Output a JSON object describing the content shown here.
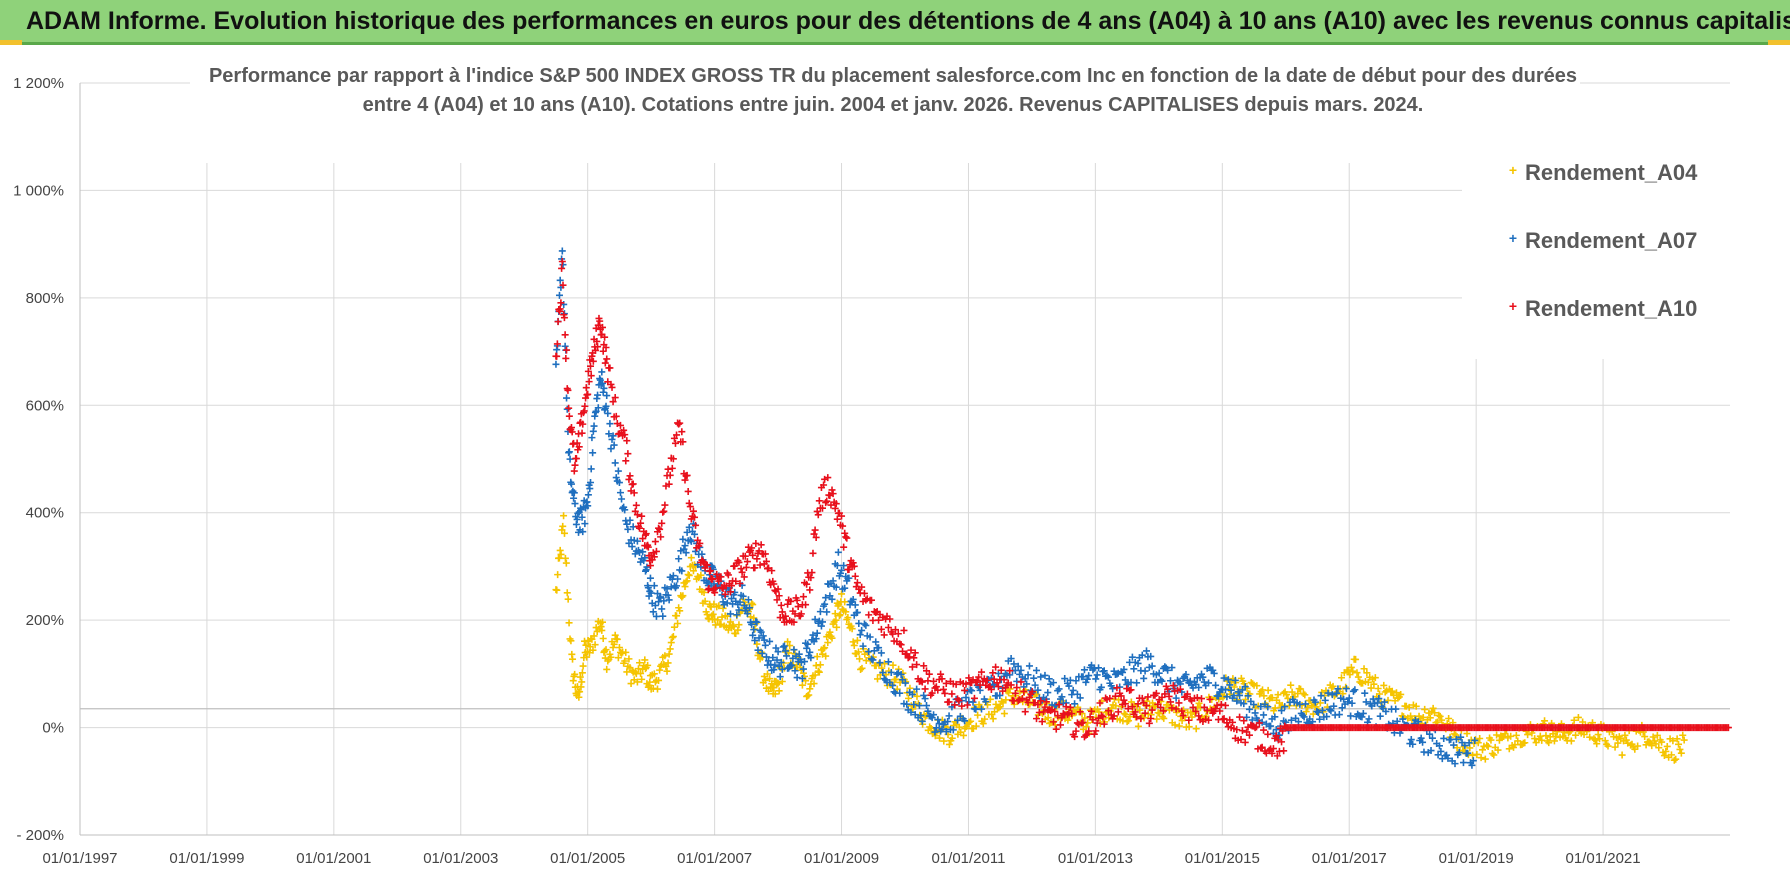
{
  "banner": {
    "title": "ADAM Informe. Evolution historique des performances en euros pour des détentions de 4 ans (A04) à 10 ans (A10) avec les revenus connus capitalisés"
  },
  "chart_data": {
    "type": "scatter",
    "title_line1": "Performance par rapport à l'indice S&P 500 INDEX GROSS TR  du placement salesforce.com Inc en fonction de la date de début pour des durées",
    "title_line2": "entre 4 (A04) et 10 ans (A10). Cotations entre juin. 2004 et janv. 2026. Revenus CAPITALISES depuis mars. 2024.",
    "xlabel": "",
    "ylabel": "",
    "x_tick_labels": [
      "01/01/1997",
      "01/01/1999",
      "01/01/2001",
      "01/01/2003",
      "01/01/2005",
      "01/01/2007",
      "01/01/2009",
      "01/01/2011",
      "01/01/2013",
      "01/01/2015",
      "01/01/2017",
      "01/01/2019",
      "01/01/2021"
    ],
    "x_tick_years": [
      1997,
      1999,
      2001,
      2003,
      2005,
      2007,
      2009,
      2011,
      2013,
      2015,
      2017,
      2019,
      2021
    ],
    "xlim": [
      1997.0,
      2023.0
    ],
    "y_tick_labels": [
      "- 200%",
      "0%",
      "200%",
      "400%",
      "600%",
      "800%",
      "1 000%",
      "1 200%"
    ],
    "y_tick_values": [
      -200,
      0,
      200,
      400,
      600,
      800,
      1000,
      1200
    ],
    "ylim": [
      -200,
      1200
    ],
    "grid": true,
    "legend_position": "top-right",
    "series": [
      {
        "name": "Rendement_A04",
        "color": "#f5c400",
        "x": [
          2004.5,
          2004.62,
          2004.75,
          2004.85,
          2004.95,
          2005.05,
          2005.2,
          2005.3,
          2005.45,
          2005.6,
          2005.75,
          2005.9,
          2006.0,
          2006.15,
          2006.3,
          2006.45,
          2006.6,
          2006.75,
          2006.9,
          2007.0,
          2007.15,
          2007.3,
          2007.45,
          2007.6,
          2007.75,
          2007.9,
          2008.0,
          2008.15,
          2008.3,
          2008.45,
          2008.6,
          2008.75,
          2008.9,
          2009.0,
          2009.15,
          2009.3,
          2009.5,
          2009.7,
          2009.9,
          2010.1,
          2010.3,
          2010.5,
          2010.7,
          2010.9,
          2011.1,
          2011.3,
          2011.5,
          2011.7,
          2011.9,
          2012.1,
          2012.3,
          2012.5,
          2012.7,
          2012.9,
          2013.1,
          2013.3,
          2013.5,
          2013.7,
          2013.9,
          2014.1,
          2014.3,
          2014.5,
          2014.7,
          2014.9,
          2015.1,
          2015.3,
          2015.5,
          2015.7,
          2015.9,
          2016.1,
          2016.3,
          2016.5,
          2016.7,
          2016.9,
          2017.1,
          2017.3,
          2017.5,
          2017.7,
          2017.9,
          2018.1,
          2018.3,
          2018.5,
          2018.7,
          2018.9,
          2019.1,
          2019.3,
          2019.5,
          2019.7,
          2019.9,
          2020.1,
          2020.3,
          2020.5,
          2020.7,
          2020.9,
          2021.1,
          2021.3,
          2021.5,
          2021.7,
          2021.9,
          2022.1,
          2022.3
        ],
        "y": [
          250,
          380,
          120,
          50,
          140,
          150,
          200,
          130,
          160,
          120,
          90,
          110,
          80,
          100,
          140,
          230,
          300,
          280,
          220,
          210,
          200,
          180,
          230,
          210,
          110,
          60,
          80,
          140,
          120,
          70,
          110,
          150,
          200,
          230,
          180,
          130,
          110,
          100,
          90,
          60,
          20,
          0,
          -10,
          5,
          20,
          30,
          40,
          60,
          50,
          40,
          25,
          30,
          20,
          10,
          30,
          40,
          30,
          20,
          40,
          30,
          20,
          10,
          30,
          50,
          80,
          70,
          60,
          50,
          40,
          60,
          50,
          40,
          60,
          80,
          110,
          90,
          60,
          50,
          40,
          20,
          30,
          10,
          -20,
          -30,
          -40,
          -30,
          -20,
          -10,
          -10,
          -5,
          -15,
          -5,
          0,
          -10,
          -20,
          -30,
          -20,
          -10,
          -30,
          -40,
          -35
        ],
        "spread": 22
      },
      {
        "name": "Rendement_A07",
        "color": "#1f6fbf",
        "x": [
          2004.5,
          2004.6,
          2004.7,
          2004.8,
          2004.9,
          2005.0,
          2005.1,
          2005.2,
          2005.3,
          2005.45,
          2005.6,
          2005.75,
          2005.9,
          2006.0,
          2006.15,
          2006.3,
          2006.45,
          2006.6,
          2006.75,
          2006.9,
          2007.0,
          2007.15,
          2007.3,
          2007.45,
          2007.6,
          2007.75,
          2007.9,
          2008.05,
          2008.2,
          2008.35,
          2008.5,
          2008.65,
          2008.8,
          2008.95,
          2009.1,
          2009.25,
          2009.45,
          2009.65,
          2009.85,
          2010.05,
          2010.25,
          2010.45,
          2010.65,
          2010.85,
          2011.05,
          2011.25,
          2011.45,
          2011.65,
          2011.85,
          2012.05,
          2012.25,
          2012.45,
          2012.65,
          2012.85,
          2013.05,
          2013.25,
          2013.45,
          2013.65,
          2013.85,
          2014.05,
          2014.25,
          2014.45,
          2014.65,
          2014.85,
          2015.05,
          2015.25,
          2015.45,
          2015.65,
          2015.85,
          2016.0,
          2016.2,
          2016.4,
          2016.6,
          2016.8,
          2017.0,
          2017.2,
          2017.4,
          2017.6,
          2017.8,
          2018.0,
          2018.2,
          2018.4,
          2018.6,
          2018.8,
          2019.0
        ],
        "y": [
          650,
          900,
          500,
          400,
          380,
          420,
          560,
          650,
          600,
          480,
          380,
          340,
          300,
          250,
          220,
          260,
          300,
          380,
          320,
          280,
          270,
          250,
          230,
          240,
          190,
          150,
          130,
          120,
          140,
          110,
          150,
          200,
          250,
          300,
          260,
          200,
          150,
          120,
          90,
          60,
          40,
          20,
          10,
          30,
          50,
          60,
          70,
          120,
          100,
          80,
          70,
          60,
          70,
          90,
          100,
          80,
          90,
          110,
          120,
          100,
          80,
          70,
          90,
          90,
          80,
          60,
          40,
          20,
          0,
          20,
          30,
          30,
          40,
          50,
          50,
          40,
          30,
          20,
          0,
          -10,
          -20,
          -30,
          -40,
          -45,
          -50
        ],
        "spread": 28
      },
      {
        "name": "Rendement_A10",
        "color": "#e8101c",
        "x": [
          2004.5,
          2004.6,
          2004.7,
          2004.8,
          2004.9,
          2005.0,
          2005.1,
          2005.2,
          2005.3,
          2005.45,
          2005.6,
          2005.75,
          2005.9,
          2006.0,
          2006.15,
          2006.3,
          2006.45,
          2006.6,
          2006.75,
          2006.9,
          2007.0,
          2007.15,
          2007.3,
          2007.45,
          2007.6,
          2007.75,
          2007.9,
          2008.05,
          2008.2,
          2008.35,
          2008.5,
          2008.65,
          2008.8,
          2008.95,
          2009.1,
          2009.25,
          2009.45,
          2009.65,
          2009.85,
          2010.05,
          2010.25,
          2010.45,
          2010.65,
          2010.85,
          2011.05,
          2011.25,
          2011.45,
          2011.65,
          2011.85,
          2012.05,
          2012.25,
          2012.45,
          2012.65,
          2012.85,
          2013.05,
          2013.25,
          2013.45,
          2013.65,
          2013.85,
          2014.05,
          2014.25,
          2014.45,
          2014.65,
          2014.85,
          2015.05,
          2015.25,
          2015.45,
          2015.65,
          2015.85,
          2016.0
        ],
        "y": [
          700,
          850,
          600,
          480,
          560,
          640,
          700,
          760,
          680,
          580,
          520,
          420,
          350,
          320,
          380,
          480,
          560,
          420,
          330,
          280,
          270,
          260,
          280,
          300,
          320,
          330,
          280,
          220,
          210,
          220,
          280,
          420,
          450,
          400,
          320,
          260,
          220,
          200,
          180,
          150,
          100,
          80,
          70,
          60,
          70,
          80,
          100,
          80,
          60,
          40,
          20,
          20,
          10,
          0,
          20,
          40,
          60,
          40,
          30,
          50,
          60,
          40,
          30,
          30,
          20,
          0,
          -10,
          -20,
          -30,
          -20
        ],
        "flat_from": 2016.0,
        "flat_to": 2023.0,
        "flat_value": 0,
        "spread": 26
      }
    ]
  }
}
